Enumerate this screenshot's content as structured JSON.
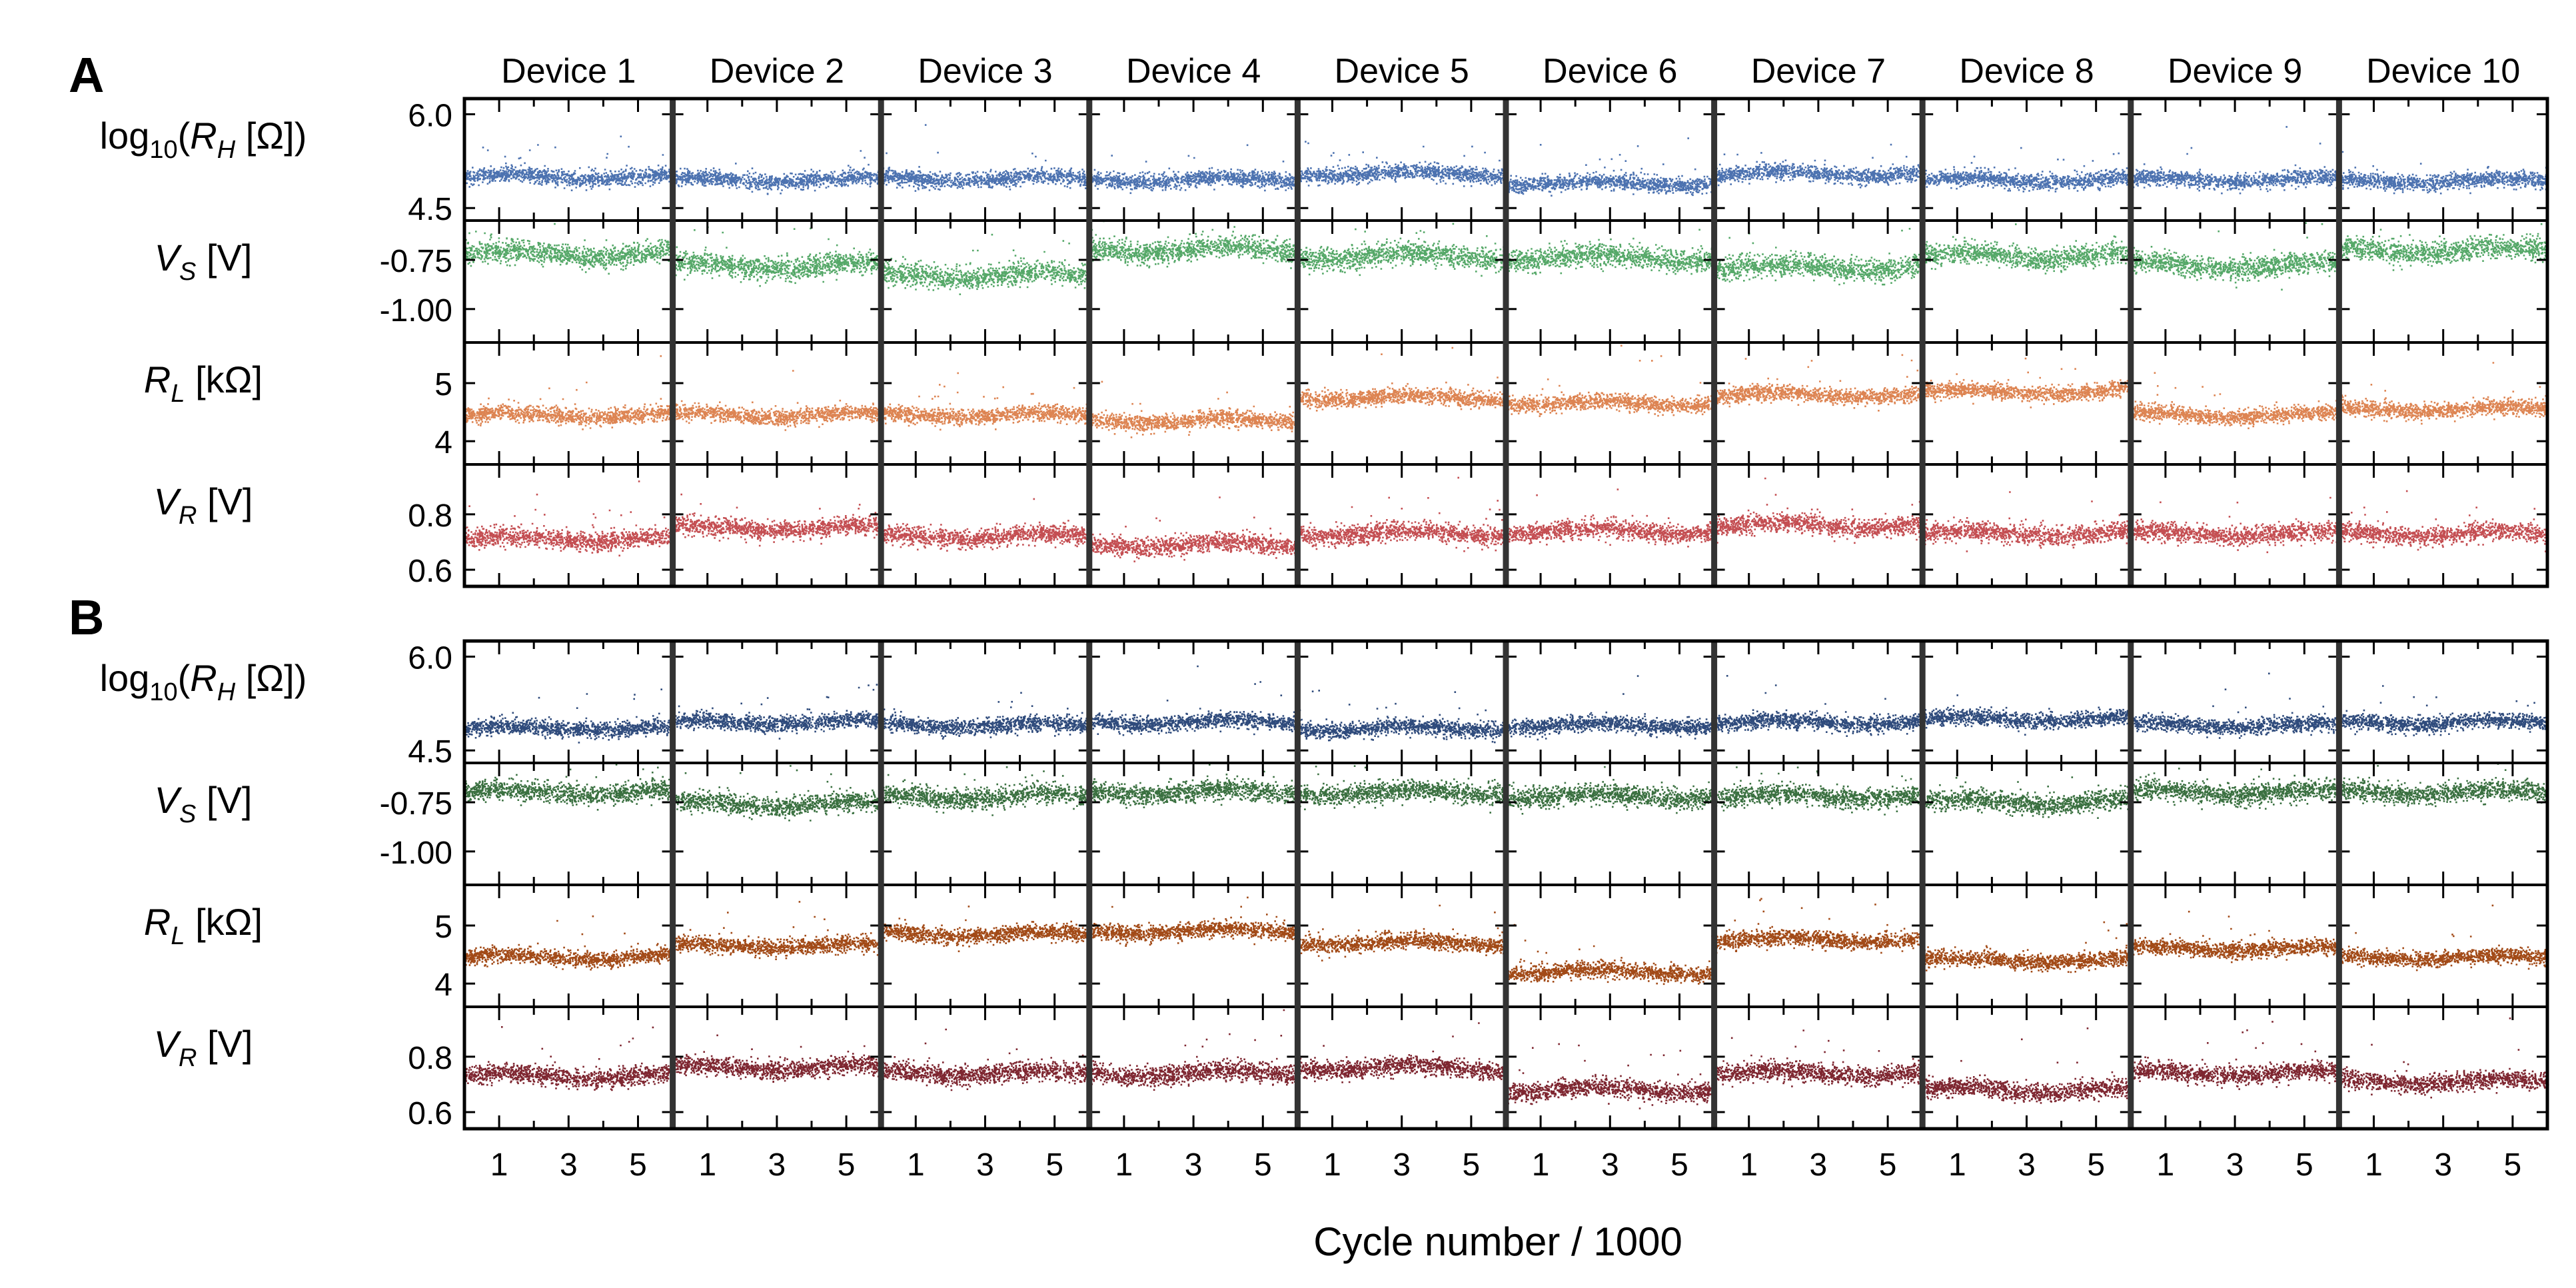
{
  "chart_data": {
    "type": "scatter",
    "xlabel": "Cycle number / 1000",
    "x_tick_labels": [
      "1",
      "3",
      "5"
    ],
    "xlim": [
      0,
      6
    ],
    "devices": [
      "Device 1",
      "Device 2",
      "Device 3",
      "Device 4",
      "Device 5",
      "Device 6",
      "Device 7",
      "Device 8",
      "Device 9",
      "Device 10"
    ],
    "panels": [
      {
        "label": "A",
        "rows": [
          {
            "key": "RH",
            "label_main": "log",
            "label_sub": "10",
            "label_tail": "(R_H [Ω])",
            "ylim": [
              4.3,
              6.25
            ],
            "yticks": [
              6.0,
              4.5
            ],
            "ytick_labels": [
              "6.0",
              "4.5"
            ],
            "color": "#4C72B0",
            "device_mean": [
              5.0,
              4.95,
              4.97,
              4.95,
              5.05,
              4.9,
              5.05,
              4.95,
              4.95,
              4.93
            ],
            "spread": 0.11
          },
          {
            "key": "VS",
            "label_main": "V",
            "label_sub": "S",
            "label_tail": " [V]",
            "ylim": [
              -1.17,
              -0.55
            ],
            "yticks": [
              -0.75,
              -1.0
            ],
            "ytick_labels": [
              "-0.75",
              "-1.00"
            ],
            "color": "#55A868",
            "device_mean": [
              -0.72,
              -0.78,
              -0.83,
              -0.7,
              -0.73,
              -0.74,
              -0.79,
              -0.73,
              -0.78,
              -0.7
            ],
            "spread": 0.05
          },
          {
            "key": "RL",
            "label_main": "R",
            "label_sub": "L",
            "label_tail": " [kΩ]",
            "ylim": [
              3.6,
              5.7
            ],
            "yticks": [
              5,
              4
            ],
            "ytick_labels": [
              "5",
              "4"
            ],
            "color": "#DD8452",
            "device_mean": [
              4.45,
              4.45,
              4.45,
              4.35,
              4.75,
              4.65,
              4.8,
              4.85,
              4.45,
              4.55
            ],
            "spread": 0.12
          },
          {
            "key": "VR",
            "label_main": "V",
            "label_sub": "R",
            "label_tail": " [V]",
            "ylim": [
              0.54,
              0.98
            ],
            "yticks": [
              0.8,
              0.6
            ],
            "ytick_labels": [
              "0.8",
              "0.6"
            ],
            "color": "#C44E52",
            "device_mean": [
              0.71,
              0.75,
              0.72,
              0.69,
              0.73,
              0.74,
              0.76,
              0.73,
              0.73,
              0.73
            ],
            "spread": 0.03
          }
        ]
      },
      {
        "label": "B",
        "rows": [
          {
            "key": "RH",
            "label_main": "log",
            "label_sub": "10",
            "label_tail": "(R_H [Ω])",
            "ylim": [
              4.3,
              6.25
            ],
            "yticks": [
              6.0,
              4.5
            ],
            "ytick_labels": [
              "6.0",
              "4.5"
            ],
            "color": "#2F4B7C",
            "device_mean": [
              4.85,
              4.95,
              4.9,
              4.95,
              4.85,
              4.9,
              4.95,
              5.0,
              4.9,
              4.95
            ],
            "spread": 0.11
          },
          {
            "key": "VS",
            "label_main": "V",
            "label_sub": "S",
            "label_tail": " [V]",
            "ylim": [
              -1.17,
              -0.55
            ],
            "yticks": [
              -0.75,
              -1.0
            ],
            "ytick_labels": [
              "-0.75",
              "-1.00"
            ],
            "color": "#3A7040",
            "device_mean": [
              -0.7,
              -0.76,
              -0.72,
              -0.7,
              -0.7,
              -0.72,
              -0.72,
              -0.75,
              -0.7,
              -0.7
            ],
            "spread": 0.045
          },
          {
            "key": "RL",
            "label_main": "R",
            "label_sub": "L",
            "label_tail": " [kΩ]",
            "ylim": [
              3.6,
              5.7
            ],
            "yticks": [
              5,
              4
            ],
            "ytick_labels": [
              "5",
              "4"
            ],
            "color": "#A24A17",
            "device_mean": [
              4.45,
              4.65,
              4.85,
              4.9,
              4.7,
              4.2,
              4.75,
              4.4,
              4.6,
              4.45
            ],
            "spread": 0.12
          },
          {
            "key": "VR",
            "label_main": "V",
            "label_sub": "R",
            "label_tail": " [V]",
            "ylim": [
              0.54,
              0.98
            ],
            "yticks": [
              0.8,
              0.6
            ],
            "ytick_labels": [
              "0.8",
              "0.6"
            ],
            "color": "#7E2630",
            "device_mean": [
              0.73,
              0.76,
              0.74,
              0.74,
              0.76,
              0.68,
              0.74,
              0.68,
              0.74,
              0.71
            ],
            "spread": 0.03
          }
        ]
      }
    ]
  }
}
